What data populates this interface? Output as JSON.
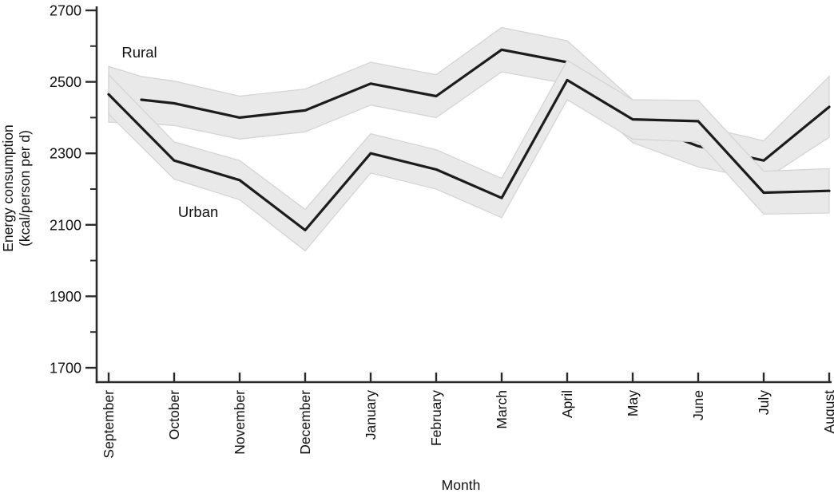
{
  "chart_data": {
    "type": "line",
    "title": "",
    "xlabel": "Month",
    "ylabel_lines": [
      "Energy consumption",
      "(kcal/person per d)"
    ],
    "x_categories": [
      "September",
      "October",
      "November",
      "December",
      "January",
      "February",
      "March",
      "April",
      "May",
      "June",
      "July",
      "August"
    ],
    "y_axis": {
      "min": 1700,
      "max": 2700,
      "major_ticks": [
        2700,
        2500,
        2300,
        2100,
        1900,
        1700
      ],
      "minor_ticks": [
        2600,
        2400,
        2200,
        2000,
        1800
      ],
      "grid": false
    },
    "legend_position": "inline-annotations",
    "series": [
      {
        "name": "Rural",
        "note": "line begins midway between September and October; shaded band is a confidence interval",
        "x_index": [
          0.5,
          1,
          2,
          3,
          4,
          5,
          6,
          7,
          8,
          9,
          10,
          11
        ],
        "values": [
          2450,
          2440,
          2400,
          2420,
          2495,
          2460,
          2590,
          2555,
          2390,
          2320,
          2280,
          2430
        ],
        "band_x_index": [
          0,
          0.5,
          1,
          2,
          3,
          4,
          5,
          6,
          7,
          8,
          9,
          10,
          11
        ],
        "band_center": [
          2465,
          2450,
          2440,
          2400,
          2420,
          2495,
          2460,
          2590,
          2555,
          2390,
          2320,
          2280,
          2430
        ],
        "band_half_width": [
          78,
          65,
          62,
          60,
          60,
          60,
          60,
          62,
          60,
          60,
          58,
          55,
          85
        ]
      },
      {
        "name": "Urban",
        "note": "shaded band is a confidence interval",
        "x_index": [
          0,
          1,
          2,
          3,
          4,
          5,
          6,
          7,
          8,
          9,
          10,
          11
        ],
        "values": [
          2465,
          2280,
          2225,
          2085,
          2300,
          2255,
          2175,
          2505,
          2395,
          2390,
          2190,
          2195
        ],
        "band_x_index": [
          0,
          1,
          2,
          3,
          4,
          5,
          6,
          7,
          8,
          9,
          10,
          11
        ],
        "band_center": [
          2465,
          2280,
          2225,
          2085,
          2300,
          2255,
          2175,
          2505,
          2395,
          2390,
          2190,
          2195
        ],
        "band_half_width": [
          55,
          52,
          55,
          58,
          55,
          55,
          55,
          55,
          55,
          58,
          60,
          62
        ]
      }
    ],
    "annotations": [
      {
        "text": "Rural",
        "x_index": 0.2,
        "value": 2568
      },
      {
        "text": "Urban",
        "x_index": 1.06,
        "value": 2122
      }
    ],
    "colors": {
      "line": "#1c1c1c",
      "band_fill": "#e9e9e9",
      "band_edge": "#d4d4d4",
      "axis": "#2a2a2a",
      "text": "#111111",
      "background": "#ffffff"
    }
  }
}
